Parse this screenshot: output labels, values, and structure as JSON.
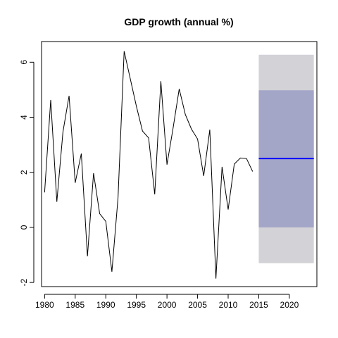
{
  "chart_data": {
    "type": "line",
    "title": "GDP growth (annual %)",
    "xlabel": "",
    "ylabel": "",
    "xlim": [
      1979.5,
      2024.5
    ],
    "ylim": [
      -2.15,
      6.75
    ],
    "xticks": [
      1980,
      1985,
      1990,
      1995,
      2000,
      2005,
      2010,
      2015,
      2020
    ],
    "yticks": [
      -2,
      0,
      2,
      4,
      6
    ],
    "grid": false,
    "series": [
      {
        "x": [
          1980,
          1981,
          1982,
          1983,
          1984,
          1985,
          1986,
          1987,
          1988,
          1989,
          1990,
          1991,
          1992,
          1993,
          1994,
          1995,
          1996,
          1997,
          1998,
          1999,
          2000,
          2001,
          2002,
          2003,
          2004,
          2005,
          2006,
          2007,
          2008,
          2009,
          2010,
          2011,
          2012,
          2013,
          2014
        ],
        "values": [
          1.27,
          4.63,
          0.93,
          3.47,
          4.78,
          1.62,
          2.68,
          -1.05,
          1.97,
          0.5,
          0.22,
          -1.61,
          1.08,
          6.4,
          5.4,
          4.4,
          3.5,
          3.25,
          1.2,
          5.31,
          2.28,
          3.61,
          5.03,
          4.1,
          3.57,
          3.21,
          1.87,
          3.55,
          -1.86,
          2.2,
          0.65,
          2.3,
          2.52,
          2.5,
          2.03
        ],
        "color": "#000000"
      }
    ],
    "forecast": {
      "x": [
        2015,
        2024
      ],
      "mean": 2.5,
      "interval_80": [
        0.0,
        4.98
      ],
      "interval_95": [
        -1.3,
        6.27
      ],
      "mean_color": "#0000ff",
      "interval_80_color": "#a4a6c8",
      "interval_95_color": "#d2d2d7"
    }
  }
}
